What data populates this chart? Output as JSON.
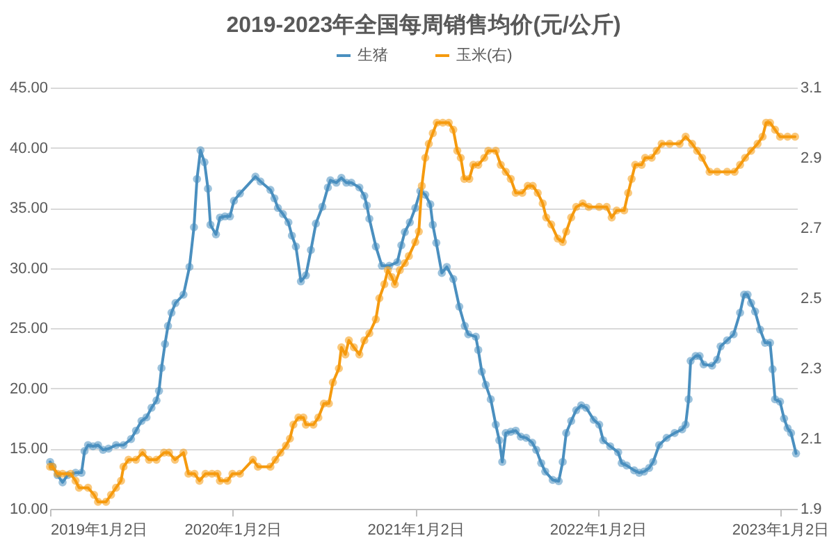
{
  "chart_data": {
    "type": "line",
    "title": "2019-2023年全国每周销售均价(元/公斤)",
    "grid": "y",
    "legend": "top",
    "marker": "circle",
    "line_style": "solid",
    "xlim": [
      "2019-01-02",
      "2023-02-05"
    ],
    "xticks": [
      {
        "value": "2019-01-02",
        "label": "2019年1月2日"
      },
      {
        "value": "2020-01-02",
        "label": "2020年1月2日"
      },
      {
        "value": "2021-01-02",
        "label": "2021年1月2日"
      },
      {
        "value": "2022-01-02",
        "label": "2022年1月2日"
      },
      {
        "value": "2023-01-02",
        "label": "2023年1月2日"
      }
    ],
    "ylim": [
      10,
      45
    ],
    "yticks": [
      {
        "value": 10,
        "label": "10.00"
      },
      {
        "value": 15,
        "label": "15.00"
      },
      {
        "value": 20,
        "label": "20.00"
      },
      {
        "value": 25,
        "label": "25.00"
      },
      {
        "value": 30,
        "label": "30.00"
      },
      {
        "value": 35,
        "label": "35.00"
      },
      {
        "value": 40,
        "label": "40.00"
      },
      {
        "value": 45,
        "label": "45.00"
      }
    ],
    "y2lim": [
      1.9,
      3.1
    ],
    "y2ticks": [
      1.9,
      2.1,
      2.3,
      2.5,
      2.7,
      2.9,
      3.1
    ],
    "series": [
      {
        "name": "生猪",
        "color": "#4a8fbf",
        "x": [
          "2019-01-02",
          "2019-01-07",
          "2019-01-17",
          "2019-01-27",
          "2019-02-06",
          "2019-02-22",
          "2019-03-06",
          "2019-03-12",
          "2019-03-19",
          "2019-03-29",
          "2019-04-08",
          "2019-04-18",
          "2019-04-29",
          "2019-05-14",
          "2019-05-29",
          "2019-06-13",
          "2019-06-23",
          "2019-07-04",
          "2019-07-14",
          "2019-07-24",
          "2019-08-03",
          "2019-08-08",
          "2019-08-13",
          "2019-08-20",
          "2019-08-26",
          "2019-09-02",
          "2019-09-10",
          "2019-09-26",
          "2019-10-08",
          "2019-10-17",
          "2019-10-23",
          "2019-10-30",
          "2019-11-07",
          "2019-11-14",
          "2019-11-19",
          "2019-11-30",
          "2019-12-08",
          "2019-12-18",
          "2019-12-28",
          "2020-01-05",
          "2020-01-17",
          "2020-02-17",
          "2020-02-27",
          "2020-03-18",
          "2020-03-26",
          "2020-04-02",
          "2020-04-12",
          "2020-04-23",
          "2020-04-30",
          "2020-05-08",
          "2020-05-18",
          "2020-05-28",
          "2020-06-07",
          "2020-06-17",
          "2020-06-30",
          "2020-07-11",
          "2020-07-16",
          "2020-07-28",
          "2020-08-07",
          "2020-08-17",
          "2020-08-27",
          "2020-09-12",
          "2020-09-22",
          "2020-09-27",
          "2020-10-02",
          "2020-10-15",
          "2020-10-27",
          "2020-11-11",
          "2020-11-27",
          "2020-12-05",
          "2020-12-12",
          "2020-12-22",
          "2021-01-02",
          "2021-01-12",
          "2021-01-22",
          "2021-02-01",
          "2021-02-06",
          "2021-02-13",
          "2021-02-24",
          "2021-03-06",
          "2021-03-19",
          "2021-03-31",
          "2021-04-11",
          "2021-04-18",
          "2021-05-03",
          "2021-05-08",
          "2021-05-15",
          "2021-05-23",
          "2021-06-02",
          "2021-06-12",
          "2021-06-19",
          "2021-06-25",
          "2021-07-02",
          "2021-07-12",
          "2021-07-22",
          "2021-08-01",
          "2021-08-12",
          "2021-08-24",
          "2021-09-01",
          "2021-09-11",
          "2021-09-19",
          "2021-10-04",
          "2021-10-16",
          "2021-10-24",
          "2021-10-31",
          "2021-11-10",
          "2021-11-20",
          "2021-11-30",
          "2021-12-10",
          "2021-12-25",
          "2022-01-05",
          "2022-01-13",
          "2022-01-27",
          "2022-02-12",
          "2022-02-19",
          "2022-03-01",
          "2022-03-16",
          "2022-03-26",
          "2022-04-05",
          "2022-04-15",
          "2022-04-23",
          "2022-05-05",
          "2022-05-20",
          "2022-06-05",
          "2022-06-20",
          "2022-06-27",
          "2022-07-03",
          "2022-07-07",
          "2022-07-17",
          "2022-07-25",
          "2022-08-02",
          "2022-08-19",
          "2022-08-29",
          "2022-09-05",
          "2022-09-18",
          "2022-10-01",
          "2022-10-14",
          "2022-10-22",
          "2022-10-29",
          "2022-11-05",
          "2022-11-13",
          "2022-11-23",
          "2022-12-03",
          "2022-12-13",
          "2022-12-18",
          "2022-12-23",
          "2023-01-02",
          "2023-01-10",
          "2023-01-17",
          "2023-01-24",
          "2023-02-03"
        ],
        "values": [
          13.9,
          13.5,
          12.8,
          12.2,
          12.8,
          13.0,
          13.0,
          14.8,
          15.3,
          15.2,
          15.3,
          14.9,
          15.0,
          15.3,
          15.3,
          15.8,
          16.5,
          17.3,
          17.6,
          18.4,
          19.0,
          19.8,
          21.7,
          23.7,
          25.2,
          26.3,
          27.1,
          27.8,
          30.1,
          33.4,
          37.4,
          39.8,
          38.8,
          36.6,
          33.6,
          32.8,
          34.2,
          34.3,
          34.3,
          35.6,
          36.2,
          37.6,
          37.2,
          36.5,
          35.8,
          35.0,
          34.5,
          33.8,
          32.7,
          31.8,
          28.9,
          29.4,
          31.5,
          33.7,
          35.1,
          36.7,
          37.3,
          37.1,
          37.5,
          37.1,
          37.1,
          36.7,
          36.0,
          35.2,
          34.1,
          31.8,
          30.2,
          30.2,
          30.5,
          31.9,
          33.0,
          33.8,
          35.0,
          36.4,
          36.1,
          35.3,
          33.6,
          32.1,
          29.6,
          30.1,
          29.1,
          26.8,
          25.2,
          24.5,
          24.3,
          23.2,
          21.4,
          20.3,
          19.1,
          17.0,
          15.7,
          13.9,
          16.3,
          16.4,
          16.5,
          16.0,
          15.9,
          15.5,
          14.9,
          13.8,
          13.1,
          12.4,
          12.3,
          13.9,
          16.3,
          17.3,
          18.2,
          18.6,
          18.4,
          17.4,
          17.0,
          15.7,
          15.2,
          14.7,
          13.8,
          13.6,
          13.2,
          13.0,
          13.1,
          13.4,
          13.9,
          15.3,
          15.9,
          16.3,
          16.6,
          17.0,
          19.1,
          22.3,
          22.7,
          22.7,
          22.0,
          21.9,
          22.4,
          23.5,
          24.0,
          24.5,
          26.3,
          27.8,
          27.8,
          27.1,
          26.4,
          24.9,
          23.8,
          23.8,
          21.6,
          19.1,
          18.9,
          17.5,
          16.7,
          16.3,
          14.6
        ]
      },
      {
        "name": "玉米(右)",
        "color": "#f59a0e",
        "axis": "y2",
        "x": [
          "2019-01-02",
          "2019-01-07",
          "2019-01-17",
          "2019-01-27",
          "2019-02-12",
          "2019-02-22",
          "2019-03-01",
          "2019-03-19",
          "2019-03-31",
          "2019-04-08",
          "2019-04-24",
          "2019-05-04",
          "2019-05-14",
          "2019-05-24",
          "2019-05-29",
          "2019-06-08",
          "2019-06-23",
          "2019-07-06",
          "2019-07-19",
          "2019-08-03",
          "2019-08-18",
          "2019-08-28",
          "2019-09-09",
          "2019-09-26",
          "2019-10-06",
          "2019-10-18",
          "2019-10-28",
          "2019-11-09",
          "2019-11-22",
          "2019-12-03",
          "2019-12-08",
          "2019-12-23",
          "2020-01-02",
          "2020-01-17",
          "2020-02-12",
          "2020-02-22",
          "2020-03-18",
          "2020-03-28",
          "2020-04-07",
          "2020-04-18",
          "2020-04-26",
          "2020-05-03",
          "2020-05-13",
          "2020-05-23",
          "2020-05-28",
          "2020-06-12",
          "2020-06-22",
          "2020-07-03",
          "2020-07-13",
          "2020-07-21",
          "2020-08-02",
          "2020-08-07",
          "2020-08-15",
          "2020-08-22",
          "2020-09-01",
          "2020-09-12",
          "2020-09-22",
          "2020-10-02",
          "2020-10-15",
          "2020-10-22",
          "2020-11-01",
          "2020-11-08",
          "2020-11-16",
          "2020-11-22",
          "2020-12-02",
          "2020-12-12",
          "2020-12-20",
          "2021-01-02",
          "2021-01-09",
          "2021-01-15",
          "2021-01-22",
          "2021-01-29",
          "2021-02-06",
          "2021-02-14",
          "2021-02-26",
          "2021-03-10",
          "2021-03-19",
          "2021-03-27",
          "2021-04-03",
          "2021-04-10",
          "2021-04-20",
          "2021-04-28",
          "2021-05-08",
          "2021-05-20",
          "2021-05-28",
          "2021-06-12",
          "2021-06-22",
          "2021-07-02",
          "2021-07-12",
          "2021-07-22",
          "2021-08-04",
          "2021-08-15",
          "2021-08-25",
          "2021-09-04",
          "2021-09-14",
          "2021-09-21",
          "2021-10-01",
          "2021-10-14",
          "2021-10-24",
          "2021-10-31",
          "2021-11-10",
          "2021-11-20",
          "2021-12-03",
          "2021-12-15",
          "2022-01-05",
          "2022-01-20",
          "2022-01-30",
          "2022-02-09",
          "2022-02-24",
          "2022-03-04",
          "2022-03-11",
          "2022-03-18",
          "2022-03-31",
          "2022-04-07",
          "2022-04-20",
          "2022-04-30",
          "2022-05-10",
          "2022-05-26",
          "2022-06-15",
          "2022-06-27",
          "2022-07-10",
          "2022-07-20",
          "2022-07-30",
          "2022-08-14",
          "2022-08-29",
          "2022-09-18",
          "2022-10-03",
          "2022-10-14",
          "2022-10-24",
          "2022-11-05",
          "2022-11-18",
          "2022-11-28",
          "2022-12-05",
          "2022-12-13",
          "2022-12-23",
          "2023-01-02",
          "2023-01-17",
          "2023-02-01"
        ],
        "values": [
          2.02,
          2.02,
          2.0,
          2.0,
          2.0,
          1.98,
          1.96,
          1.96,
          1.94,
          1.92,
          1.92,
          1.94,
          1.96,
          1.98,
          2.02,
          2.04,
          2.04,
          2.06,
          2.04,
          2.04,
          2.06,
          2.06,
          2.04,
          2.06,
          2.0,
          2.0,
          1.98,
          2.0,
          2.0,
          2.0,
          1.98,
          1.98,
          2.0,
          2.0,
          2.04,
          2.02,
          2.02,
          2.04,
          2.06,
          2.08,
          2.1,
          2.14,
          2.16,
          2.16,
          2.14,
          2.14,
          2.16,
          2.2,
          2.2,
          2.26,
          2.3,
          2.36,
          2.34,
          2.38,
          2.36,
          2.34,
          2.38,
          2.4,
          2.44,
          2.5,
          2.54,
          2.58,
          2.56,
          2.54,
          2.58,
          2.6,
          2.62,
          2.66,
          2.69,
          2.82,
          2.9,
          2.94,
          2.97,
          3.0,
          3.0,
          3.0,
          2.98,
          2.92,
          2.9,
          2.84,
          2.84,
          2.88,
          2.88,
          2.9,
          2.92,
          2.92,
          2.88,
          2.86,
          2.84,
          2.8,
          2.8,
          2.82,
          2.82,
          2.8,
          2.77,
          2.73,
          2.71,
          2.67,
          2.66,
          2.69,
          2.73,
          2.76,
          2.77,
          2.76,
          2.76,
          2.76,
          2.73,
          2.75,
          2.75,
          2.8,
          2.84,
          2.88,
          2.88,
          2.9,
          2.9,
          2.92,
          2.94,
          2.94,
          2.94,
          2.96,
          2.94,
          2.92,
          2.9,
          2.86,
          2.86,
          2.86,
          2.86,
          2.88,
          2.9,
          2.92,
          2.94,
          2.96,
          3.0,
          3.0,
          2.98,
          2.96,
          2.96,
          2.96
        ]
      }
    ]
  }
}
